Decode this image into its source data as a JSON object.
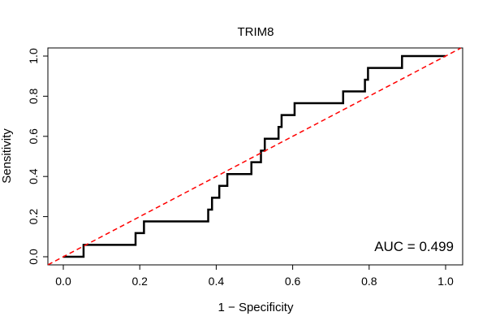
{
  "chart_data": {
    "type": "line",
    "title": "TRIM8",
    "xlabel": "1 − Specificity",
    "ylabel": "Sensitivity",
    "xlim": [
      0.0,
      1.0
    ],
    "ylim": [
      0.0,
      1.0
    ],
    "x_ticks": [
      "0.0",
      "0.2",
      "0.4",
      "0.6",
      "0.8",
      "1.0"
    ],
    "y_ticks": [
      "0.0",
      "0.2",
      "0.4",
      "0.6",
      "0.8",
      "1.0"
    ],
    "grid": false,
    "legend": "none",
    "annotation": "AUC = 0.499",
    "annotation_position": "bottom-right",
    "series": [
      {
        "style": "solid",
        "color": "#000000",
        "points": [
          [
            0.0,
            0.0
          ],
          [
            0.053,
            0.0
          ],
          [
            0.053,
            0.059
          ],
          [
            0.189,
            0.059
          ],
          [
            0.189,
            0.118
          ],
          [
            0.211,
            0.118
          ],
          [
            0.211,
            0.176
          ],
          [
            0.379,
            0.176
          ],
          [
            0.379,
            0.235
          ],
          [
            0.389,
            0.235
          ],
          [
            0.389,
            0.294
          ],
          [
            0.408,
            0.294
          ],
          [
            0.408,
            0.353
          ],
          [
            0.429,
            0.353
          ],
          [
            0.429,
            0.412
          ],
          [
            0.492,
            0.412
          ],
          [
            0.492,
            0.471
          ],
          [
            0.517,
            0.471
          ],
          [
            0.517,
            0.529
          ],
          [
            0.527,
            0.529
          ],
          [
            0.527,
            0.588
          ],
          [
            0.563,
            0.588
          ],
          [
            0.563,
            0.647
          ],
          [
            0.571,
            0.647
          ],
          [
            0.571,
            0.706
          ],
          [
            0.605,
            0.706
          ],
          [
            0.605,
            0.765
          ],
          [
            0.732,
            0.765
          ],
          [
            0.732,
            0.824
          ],
          [
            0.789,
            0.824
          ],
          [
            0.789,
            0.882
          ],
          [
            0.797,
            0.882
          ],
          [
            0.797,
            0.941
          ],
          [
            0.886,
            0.941
          ],
          [
            0.886,
            1.0
          ],
          [
            1.0,
            1.0
          ]
        ]
      },
      {
        "style": "dashed",
        "color": "#ff0000",
        "points": [
          [
            -0.04,
            -0.04
          ],
          [
            1.04,
            1.04
          ]
        ]
      }
    ]
  }
}
